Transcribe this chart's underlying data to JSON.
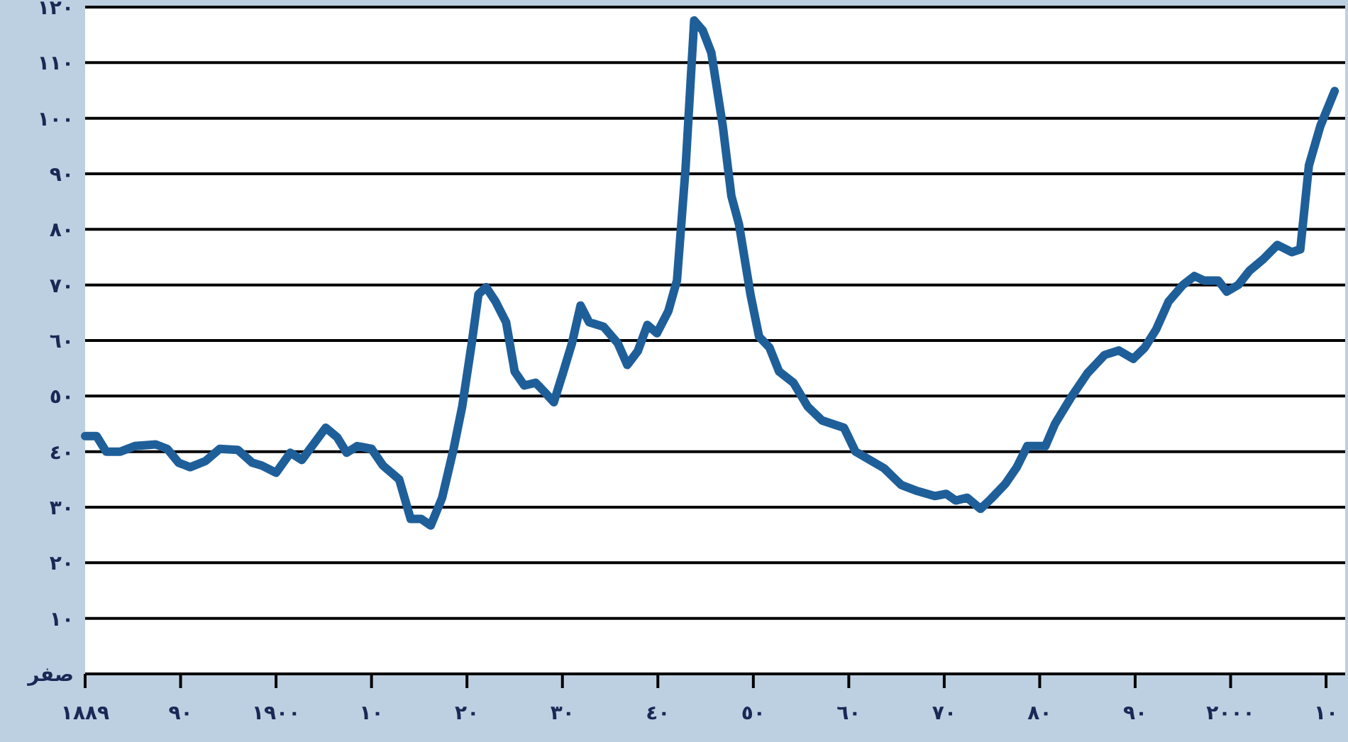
{
  "chart_data": {
    "type": "line",
    "color": "#1f5f99",
    "grid": "y",
    "x": [
      1880.0,
      1881.2,
      1882.2,
      1883.7,
      1885.2,
      1887.4,
      1888.6,
      1889.8,
      1891.0,
      1892.6,
      1894.1,
      1896.0,
      1897.5,
      1898.5,
      1900.0,
      1901.5,
      1902.7,
      1905.2,
      1906.4,
      1907.4,
      1908.5,
      1910.0,
      1911.2,
      1912.9,
      1914.1,
      1915.2,
      1916.2,
      1917.4,
      1918.6,
      1919.5,
      1920.5,
      1921.2,
      1922.0,
      1923.0,
      1924.1,
      1925.0,
      1926.0,
      1927.2,
      1928.2,
      1929.1,
      1930.1,
      1931.0,
      1931.9,
      1932.8,
      1934.3,
      1935.8,
      1936.8,
      1937.9,
      1938.9,
      1939.9,
      1941.1,
      1942.0,
      1942.9,
      1943.8,
      1944.7,
      1945.6,
      1946.8,
      1947.7,
      1948.5,
      1949.7,
      1950.6,
      1951.7,
      1952.7,
      1954.2,
      1955.7,
      1957.2,
      1958.6,
      1959.5,
      1960.7,
      1962.2,
      1963.7,
      1965.5,
      1967.2,
      1969.0,
      1970.2,
      1971.2,
      1972.4,
      1973.8,
      1974.9,
      1976.4,
      1977.6,
      1978.7,
      1980.6,
      1981.6,
      1983.3,
      1985.0,
      1986.8,
      1988.3,
      1989.8,
      1991.0,
      1992.2,
      1993.5,
      1995.0,
      1996.2,
      1997.2,
      1998.7,
      1999.6,
      2000.8,
      2002.0,
      2003.4,
      2004.9,
      2006.4,
      2007.3,
      2008.2,
      2009.4,
      2010.9
    ],
    "values": [
      42.8,
      42.8,
      40,
      40,
      41,
      41.3,
      40.5,
      38,
      37.2,
      38.3,
      40.5,
      40.3,
      38,
      37.5,
      36.2,
      39.8,
      38.5,
      44.3,
      42.6,
      39.8,
      41,
      40.5,
      37.5,
      35,
      27.9,
      27.9,
      26.7,
      31.7,
      40.5,
      48.1,
      59.5,
      68.3,
      69.6,
      67,
      63.3,
      54.4,
      51.9,
      52.4,
      50.6,
      48.9,
      54.4,
      59.5,
      66.3,
      63.3,
      62.5,
      59.5,
      55.6,
      58.1,
      62.8,
      61.3,
      65.3,
      70.8,
      91,
      117.6,
      115.8,
      111.8,
      98.6,
      86,
      80.9,
      68.3,
      60.7,
      58.7,
      54.4,
      52.4,
      48.1,
      45.6,
      44.8,
      44.3,
      40,
      38.5,
      37,
      34,
      32.9,
      32,
      32.4,
      31.2,
      31.7,
      29.7,
      31.5,
      34.2,
      37.2,
      41,
      41,
      45,
      49.8,
      54.1,
      57.4,
      58.2,
      56.7,
      58.7,
      62,
      67,
      70,
      71.6,
      70.8,
      70.8,
      68.8,
      70,
      72.6,
      74.6,
      77.2,
      75.9,
      76.4,
      91.5,
      98.6,
      104.9
    ],
    "xlim": [
      1880,
      2012
    ],
    "ylim": [
      0,
      120
    ],
    "xlabel": "١٨٨٩",
    "xticks": [
      {
        "value": 1880,
        "label": null
      },
      {
        "value": 1890,
        "label": "٩٠"
      },
      {
        "value": 1900,
        "label": "١٩٠٠"
      },
      {
        "value": 1910,
        "label": "١٠"
      },
      {
        "value": 1920,
        "label": "٢٠"
      },
      {
        "value": 1930,
        "label": "٣٠"
      },
      {
        "value": 1940,
        "label": "٤٠"
      },
      {
        "value": 1950,
        "label": "٥٠"
      },
      {
        "value": 1960,
        "label": "٦٠"
      },
      {
        "value": 1970,
        "label": "٧٠"
      },
      {
        "value": 1980,
        "label": "٨٠"
      },
      {
        "value": 1990,
        "label": "٩٠"
      },
      {
        "value": 2000,
        "label": "٢٠٠٠"
      },
      {
        "value": 2010,
        "label": "١٠"
      }
    ],
    "yticks": [
      {
        "value": 0,
        "label": "صفر"
      },
      {
        "value": 10,
        "label": "١٠"
      },
      {
        "value": 20,
        "label": "٢٠"
      },
      {
        "value": 30,
        "label": "٣٠"
      },
      {
        "value": 40,
        "label": "٤٠"
      },
      {
        "value": 50,
        "label": "٥٠"
      },
      {
        "value": 60,
        "label": "٦٠"
      },
      {
        "value": 70,
        "label": "٧٠"
      },
      {
        "value": 80,
        "label": "٨٠"
      },
      {
        "value": 90,
        "label": "٩٠"
      },
      {
        "value": 100,
        "label": "١٠٠"
      },
      {
        "value": 110,
        "label": "١١٠"
      },
      {
        "value": 120,
        "label": "١٢٠"
      }
    ]
  }
}
